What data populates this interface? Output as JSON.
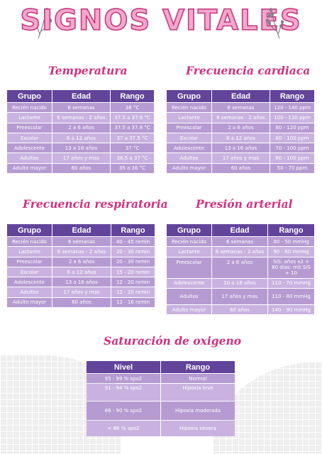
{
  "title": "SIGNOS VITALES",
  "headers": {
    "grupo": "Grupo",
    "edad": "Edad",
    "rango": "Rango",
    "nivel": "Nivel"
  },
  "temperatura": {
    "title": "Temperatura",
    "rows": [
      {
        "grupo": "Recién nacido",
        "edad": "6 semanas",
        "rango": "38 °C"
      },
      {
        "grupo": "Lactante",
        "edad": "6 semanas - 2 años",
        "rango": "37.5 a 37.8 °C"
      },
      {
        "grupo": "Preescolar",
        "edad": "2 a 6 años",
        "rango": "37.5 a 37.8 °C"
      },
      {
        "grupo": "Escolar",
        "edad": "6 a 12 años",
        "rango": "37 a 37.5 °C"
      },
      {
        "grupo": "Adolescente",
        "edad": "13 a 16 años",
        "rango": "37 °C"
      },
      {
        "grupo": "Adultos",
        "edad": "17 años y mas",
        "rango": "36.5 a 37 °C"
      },
      {
        "grupo": "Adulto mayor",
        "edad": "60 años",
        "rango": "35 a 36 °C"
      }
    ]
  },
  "frecuencia_cardiaca": {
    "title": "Frecuencia cardiaca",
    "rows": [
      {
        "grupo": "Recién nacido",
        "edad": "6 semanas",
        "rango": "120 - 140 ppm"
      },
      {
        "grupo": "Lactante",
        "edad": "6 semanas - 2 años",
        "rango": "100 - 130 ppm"
      },
      {
        "grupo": "Preescolar",
        "edad": "2 a 6 años",
        "rango": "80 - 120 ppm"
      },
      {
        "grupo": "Escolar",
        "edad": "6 a 12 años",
        "rango": "80 - 100 ppm"
      },
      {
        "grupo": "Adolescente",
        "edad": "13 a 16 años",
        "rango": "70 - 100 ppm"
      },
      {
        "grupo": "Adultos",
        "edad": "17 años y mas",
        "rango": "60 - 100 ppm"
      },
      {
        "grupo": "Adulto mayor",
        "edad": "60 años",
        "rango": "50 - 70 ppm"
      }
    ]
  },
  "frecuencia_respiratoria": {
    "title": "Frecuencia respiratoria",
    "rows": [
      {
        "grupo": "Recién nacido",
        "edad": "6 semanas",
        "rango": "40 - 45 rxmin"
      },
      {
        "grupo": "Lactante",
        "edad": "6 semanas - 2 años",
        "rango": "20 - 30 rxmin"
      },
      {
        "grupo": "Preescolar",
        "edad": "2 a 6 años",
        "rango": "20 - 30 rxmin"
      },
      {
        "grupo": "Escolar",
        "edad": "6 a 12 años",
        "rango": "15 - 20 rxmin"
      },
      {
        "grupo": "Adolescente",
        "edad": "13 a 16 años",
        "rango": "12 - 20 rxmin"
      },
      {
        "grupo": "Adultos",
        "edad": "17 años y mas",
        "rango": "12 - 20 rxmin"
      },
      {
        "grupo": "Adulto mayor",
        "edad": "60 años",
        "rango": "12 - 16 rxmin"
      }
    ]
  },
  "presion_arterial": {
    "title": "Presión arterial",
    "rows": [
      {
        "grupo": "Recién nacido",
        "edad": "6 semanas",
        "rango": "80 - 50 mmHg"
      },
      {
        "grupo": "Lactante",
        "edad": "6 semanas - 2 años",
        "rango": "90 - 60 mmHg"
      },
      {
        "grupo": "Preescolar",
        "edad": "2 a 6 años",
        "rango": "SIS: años x2 + 80 días: mit SIS + 10"
      },
      {
        "grupo": "Adolescente",
        "edad": "10 a 16 años",
        "rango": "110 - 70 mmHg"
      },
      {
        "grupo": "Adultos",
        "edad": "17 años y mas",
        "rango": "110 - 80 mmHg"
      },
      {
        "grupo": "Adulto mayor",
        "edad": "60 años",
        "rango": "140 - 90 mmHg"
      }
    ]
  },
  "saturacion": {
    "title": "Saturación de oxigeno",
    "rows": [
      {
        "nivel": "95 - 99 % spo2",
        "rango": "Normal"
      },
      {
        "nivel": "91 - 94 % spo2",
        "rango": "Hipoxia leve"
      },
      {
        "nivel": "86 - 90 % spo2",
        "rango": "Hipoxia moderada"
      },
      {
        "nivel": "< 86 % spo2",
        "rango": "Hipoxia severa"
      }
    ]
  },
  "colors": {
    "header": "#62449a",
    "row": "#b69bd2",
    "row_alt": "#c9b2e0",
    "title_pink": "#d1307f"
  },
  "icons": [
    "lavender-sprig-icon"
  ]
}
